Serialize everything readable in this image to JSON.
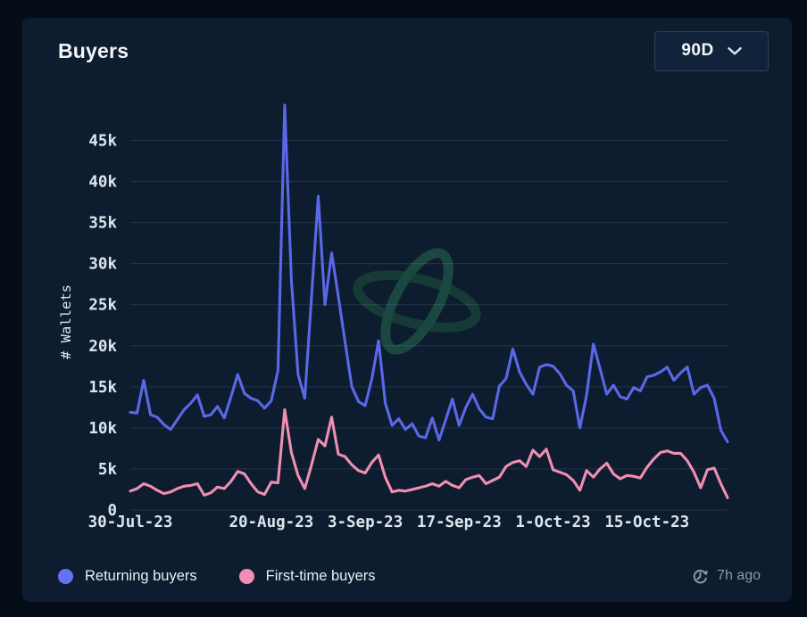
{
  "card": {
    "title": "Buyers"
  },
  "range_selector": {
    "value": "90D"
  },
  "legend": [
    {
      "label": "Returning buyers",
      "color": "#6673f0"
    },
    {
      "label": "First-time buyers",
      "color": "#f08fb4"
    }
  ],
  "updated": {
    "label": "7h ago"
  },
  "colors": {
    "card_bg": "#0d1c2e",
    "frame_bg": "#050e18",
    "grid": "#94b2cd",
    "axis_text": "#dce5ee",
    "returning_line": "#5a68e8",
    "first_time_line": "#ef8fb2",
    "watermark": "#1c4c42"
  },
  "chart_data": {
    "type": "line",
    "title": "Buyers",
    "ylabel": "# Wallets",
    "xlabel": "",
    "ylim": [
      0,
      50000
    ],
    "x_range_days": [
      0,
      89
    ],
    "grid": "horizontal",
    "legend_position": "bottom",
    "y_ticks": [
      {
        "value": 0,
        "label": "0"
      },
      {
        "value": 5000,
        "label": "5k"
      },
      {
        "value": 10000,
        "label": "10k"
      },
      {
        "value": 15000,
        "label": "15k"
      },
      {
        "value": 20000,
        "label": "20k"
      },
      {
        "value": 25000,
        "label": "25k"
      },
      {
        "value": 30000,
        "label": "30k"
      },
      {
        "value": 35000,
        "label": "35k"
      },
      {
        "value": 40000,
        "label": "40k"
      },
      {
        "value": 45000,
        "label": "45k"
      }
    ],
    "x_ticks": [
      {
        "day": 0,
        "label": "30-Jul-23"
      },
      {
        "day": 21,
        "label": "20-Aug-23"
      },
      {
        "day": 35,
        "label": "3-Sep-23"
      },
      {
        "day": 49,
        "label": "17-Sep-23"
      },
      {
        "day": 63,
        "label": "1-Oct-23"
      },
      {
        "day": 77,
        "label": "15-Oct-23"
      }
    ],
    "series": [
      {
        "name": "Returning buyers",
        "color": "#5a68e8",
        "values": [
          11900,
          11800,
          15800,
          11600,
          11300,
          10400,
          9800,
          11000,
          12200,
          13000,
          14000,
          11400,
          11600,
          12600,
          11200,
          13800,
          16500,
          14200,
          13600,
          13300,
          12400,
          13300,
          17000,
          49300,
          28000,
          16500,
          13600,
          26000,
          38200,
          25000,
          31300,
          26000,
          20500,
          15000,
          13200,
          12700,
          16000,
          20600,
          13000,
          10300,
          11100,
          9800,
          10500,
          9000,
          8800,
          11200,
          8500,
          11000,
          13500,
          10300,
          12500,
          14100,
          12300,
          11300,
          11100,
          15100,
          16000,
          19600,
          16800,
          15300,
          14100,
          17400,
          17700,
          17500,
          16600,
          15200,
          14500,
          10000,
          14000,
          20200,
          17200,
          14100,
          15200,
          13800,
          13500,
          14900,
          14500,
          16200,
          16400,
          16800,
          17400,
          15800,
          16700,
          17400,
          14100,
          14900,
          15200,
          13600,
          9700,
          8300
        ]
      },
      {
        "name": "First-time buyers",
        "color": "#ef8fb2",
        "values": [
          2300,
          2600,
          3200,
          2900,
          2400,
          2000,
          2200,
          2600,
          2900,
          3000,
          3200,
          1800,
          2100,
          2800,
          2600,
          3500,
          4700,
          4400,
          3200,
          2200,
          1900,
          3400,
          3300,
          12200,
          7000,
          4200,
          2600,
          5500,
          8600,
          7800,
          11300,
          6800,
          6500,
          5500,
          4800,
          4500,
          5800,
          6700,
          4000,
          2200,
          2400,
          2300,
          2500,
          2700,
          2900,
          3200,
          2900,
          3500,
          3000,
          2700,
          3700,
          4000,
          4200,
          3200,
          3600,
          4000,
          5300,
          5800,
          6000,
          5300,
          7300,
          6500,
          7400,
          4900,
          4600,
          4300,
          3600,
          2400,
          4800,
          4000,
          5000,
          5700,
          4400,
          3800,
          4200,
          4100,
          3900,
          5200,
          6200,
          7000,
          7200,
          6900,
          6900,
          6000,
          4600,
          2700,
          4900,
          5100,
          3200,
          1500
        ]
      }
    ]
  }
}
